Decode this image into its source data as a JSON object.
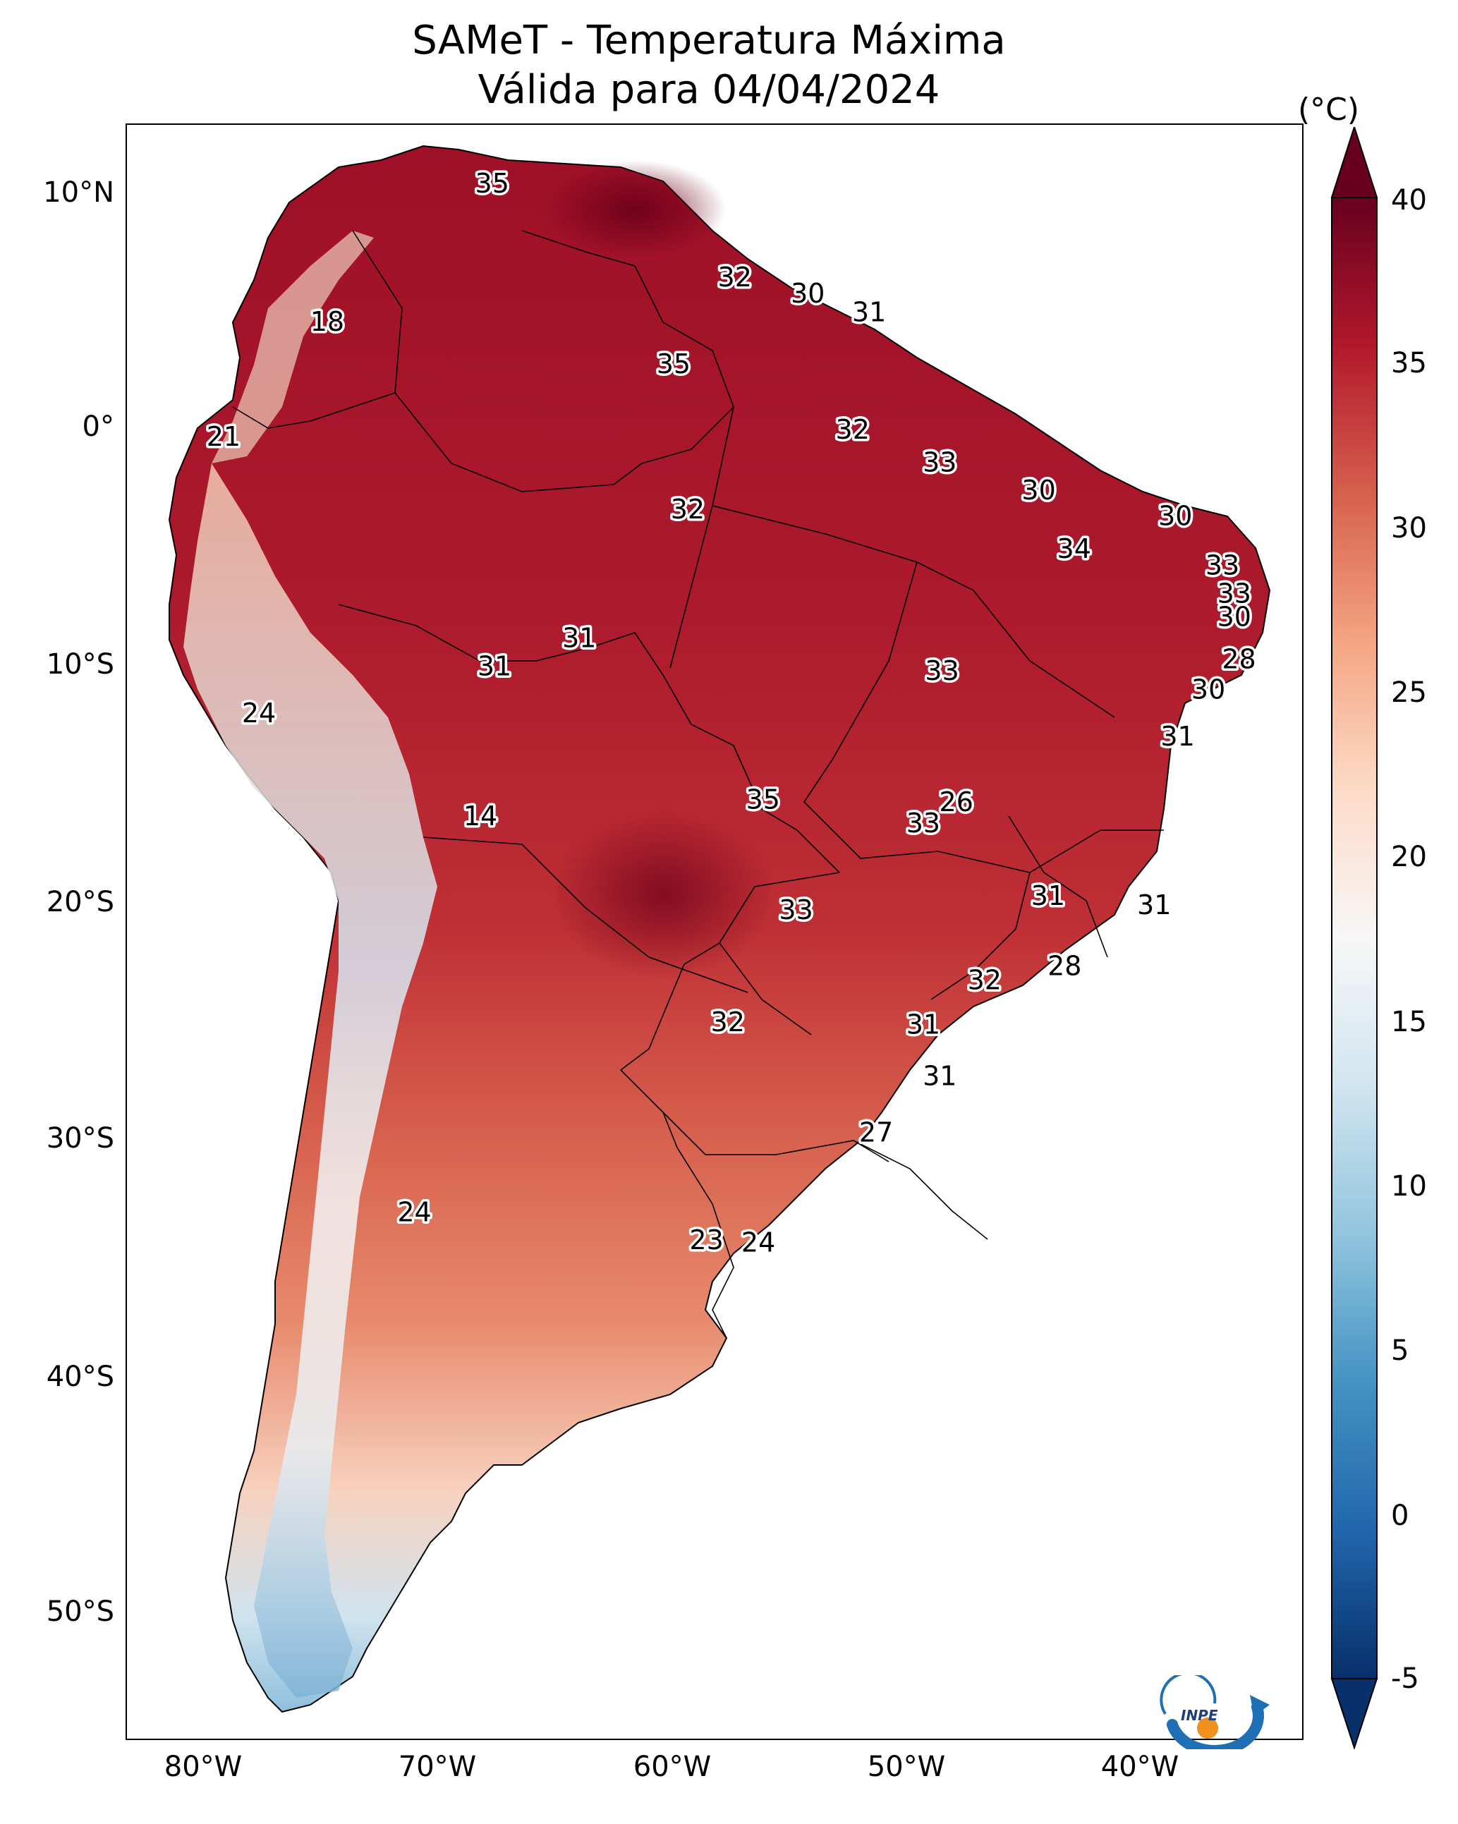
{
  "title": {
    "line1": "SAMeT - Temperatura Máxima",
    "line2": "Válida para 04/04/2024"
  },
  "lat_ticks": [
    "10°N",
    "0°",
    "10°S",
    "20°S",
    "30°S",
    "40°S",
    "50°S"
  ],
  "lon_ticks": [
    "80°W",
    "70°W",
    "60°W",
    "50°W",
    "40°W"
  ],
  "colorbar": {
    "unit": "(°C)",
    "ticks": [
      "40",
      "35",
      "30",
      "25",
      "20",
      "15",
      "10",
      "5",
      "0",
      "-5"
    ],
    "min": -5,
    "max": 40,
    "colors": [
      "#08306b",
      "#2166ac",
      "#4393c3",
      "#92c5de",
      "#d1e5f0",
      "#f7f7f7",
      "#fddbc7",
      "#f4a582",
      "#d6604d",
      "#b2182b",
      "#67001f"
    ]
  },
  "map_extent": {
    "lon_min": -83,
    "lon_max": -33,
    "lat_min": -56,
    "lat_max": 13
  },
  "station_labels": [
    {
      "text": "35",
      "lon": -67.5,
      "lat": 10.5
    },
    {
      "text": "32",
      "lon": -57.2,
      "lat": 6.5
    },
    {
      "text": "30",
      "lon": -54.1,
      "lat": 5.8
    },
    {
      "text": "31",
      "lon": -51.5,
      "lat": 5.0
    },
    {
      "text": "18",
      "lon": -74.5,
      "lat": 4.6
    },
    {
      "text": "35",
      "lon": -59.8,
      "lat": 2.8
    },
    {
      "text": "21",
      "lon": -78.9,
      "lat": -0.3
    },
    {
      "text": "32",
      "lon": -52.2,
      "lat": 0.0
    },
    {
      "text": "33",
      "lon": -48.5,
      "lat": -1.4
    },
    {
      "text": "30",
      "lon": -44.3,
      "lat": -2.6
    },
    {
      "text": "32",
      "lon": -59.2,
      "lat": -3.4
    },
    {
      "text": "30",
      "lon": -38.5,
      "lat": -3.7
    },
    {
      "text": "34",
      "lon": -42.8,
      "lat": -5.1
    },
    {
      "text": "33",
      "lon": -36.5,
      "lat": -5.8
    },
    {
      "text": "33",
      "lon": -36.0,
      "lat": -7.0
    },
    {
      "text": "30",
      "lon": -36.0,
      "lat": -8.0
    },
    {
      "text": "31",
      "lon": -63.8,
      "lat": -8.9
    },
    {
      "text": "28",
      "lon": -35.8,
      "lat": -9.8
    },
    {
      "text": "31",
      "lon": -67.4,
      "lat": -10.1
    },
    {
      "text": "33",
      "lon": -48.4,
      "lat": -10.3
    },
    {
      "text": "30",
      "lon": -37.1,
      "lat": -11.1
    },
    {
      "text": "24",
      "lon": -77.4,
      "lat": -12.1
    },
    {
      "text": "31",
      "lon": -38.4,
      "lat": -13.1
    },
    {
      "text": "26",
      "lon": -47.8,
      "lat": -15.9
    },
    {
      "text": "35",
      "lon": -56.0,
      "lat": -15.8
    },
    {
      "text": "33",
      "lon": -49.2,
      "lat": -16.8
    },
    {
      "text": "14",
      "lon": -68.0,
      "lat": -16.5
    },
    {
      "text": "31",
      "lon": -43.9,
      "lat": -19.9
    },
    {
      "text": "31",
      "lon": -39.4,
      "lat": -20.3
    },
    {
      "text": "33",
      "lon": -54.6,
      "lat": -20.5
    },
    {
      "text": "28",
      "lon": -43.2,
      "lat": -22.9
    },
    {
      "text": "32",
      "lon": -46.6,
      "lat": -23.5
    },
    {
      "text": "32",
      "lon": -57.5,
      "lat": -25.3
    },
    {
      "text": "31",
      "lon": -49.2,
      "lat": -25.4
    },
    {
      "text": "31",
      "lon": -48.5,
      "lat": -27.6
    },
    {
      "text": "27",
      "lon": -51.2,
      "lat": -30.0
    },
    {
      "text": "24",
      "lon": -70.8,
      "lat": -33.4
    },
    {
      "text": "23",
      "lon": -58.4,
      "lat": -34.6
    },
    {
      "text": "24",
      "lon": -56.2,
      "lat": -34.7
    }
  ],
  "logo": {
    "text": "INPE"
  }
}
